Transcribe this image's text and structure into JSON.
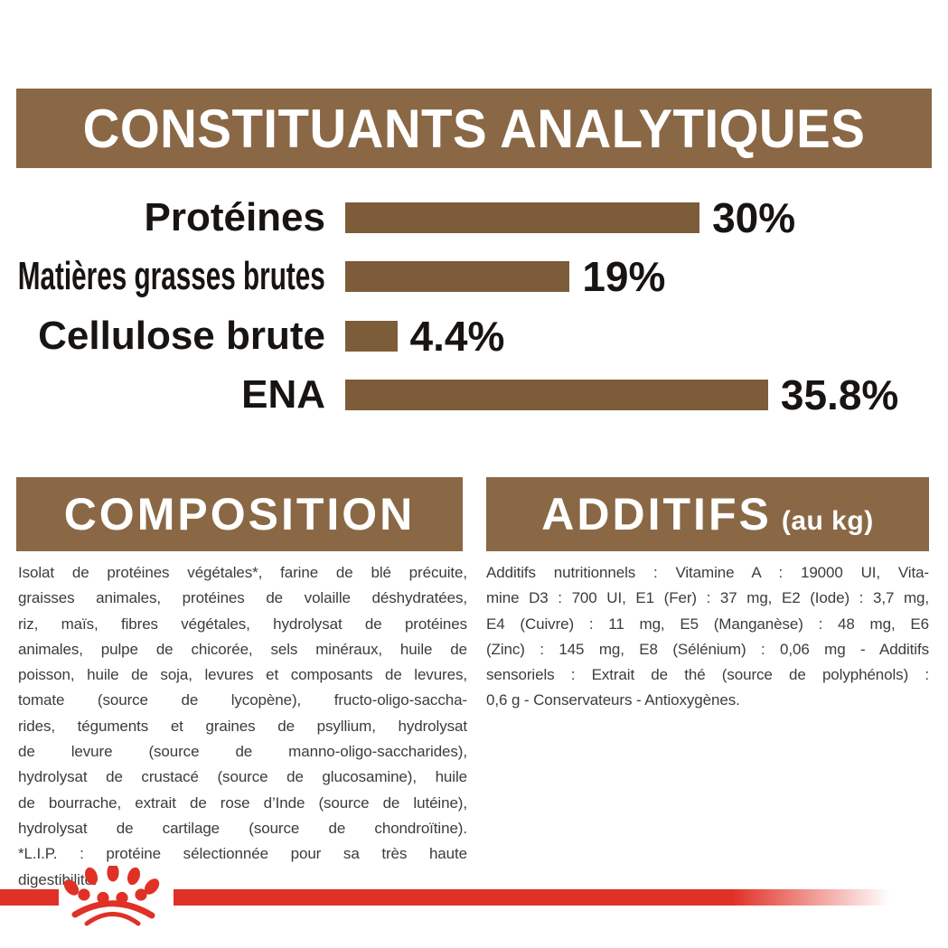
{
  "colors": {
    "banner_brown": "#8a6845",
    "bar_brown": "#7d5c3a",
    "brand_red": "#e03127",
    "body_text": "#3c3c3c",
    "chart_text": "#171411"
  },
  "header": {
    "title": "CONSTITUANTS ANALYTIQUES"
  },
  "chart_data": {
    "type": "bar",
    "orientation": "horizontal",
    "title": "CONSTITUANTS ANALYTIQUES",
    "categories": [
      "Protéines",
      "Matières grasses brutes",
      "Cellulose brute",
      "ENA"
    ],
    "values": [
      30,
      19,
      4.4,
      35.8
    ],
    "value_labels": [
      "30%",
      "19%",
      "4.4%",
      "35.8%"
    ],
    "unit": "%",
    "xlim": [
      0,
      38
    ],
    "grid": false,
    "legend": false,
    "bar_color": "#7d5c3a"
  },
  "composition": {
    "title": "COMPOSITION",
    "lines": [
      "Isolat de protéines végétales*, farine de blé précuite,",
      "graisses animales, protéines de volaille déshydratées,",
      "riz, maïs, fibres végétales, hydrolysat de protéines",
      "animales, pulpe de chicorée, sels minéraux, huile de",
      "poisson, huile de soja, levures et composants de levures,",
      "tomate (source de lycopène), fructo-oligo-saccha-",
      "rides, téguments et graines de psyllium, hydrolysat",
      "de levure (source de manno-oligo-saccharides),",
      "hydrolysat de crustacé (source de glucosamine), huile",
      "de bourrache, extrait de rose d’Inde (source de lutéine),",
      "hydrolysat de cartilage (source de chondroïtine).",
      "*L.I.P. : protéine sélectionnée pour sa très haute",
      "digestibilité."
    ]
  },
  "additifs": {
    "title": "ADDITIFS",
    "title_suffix": "(au kg)",
    "lines": [
      "Additifs nutritionnels : Vitamine A : 19000 UI, Vita-",
      "mine D3 : 700 UI, E1 (Fer) : 37 mg, E2 (Iode) : 3,7 mg,",
      "E4 (Cuivre) : 11 mg, E5 (Manganèse) : 48 mg, E6",
      "(Zinc) : 145 mg, E8 (Sélénium) : 0,06 mg - Additifs",
      "sensoriels : Extrait de thé (source de polyphénols) :",
      "0,6 g - Conservateurs - Antioxygènes."
    ]
  },
  "footer": {
    "brand_icon": "royal-canin-paw-crown"
  }
}
